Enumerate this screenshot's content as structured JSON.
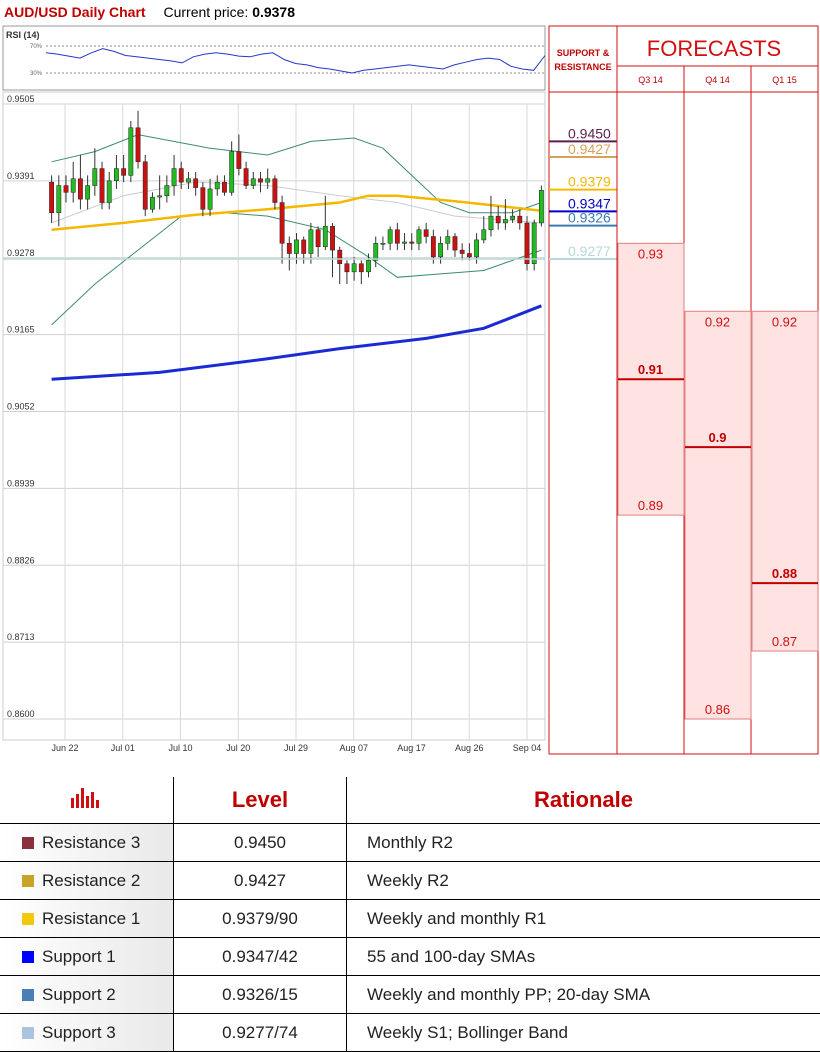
{
  "header": {
    "title": "AUD/USD Daily Chart",
    "price_label": "Current price:",
    "price_value": "0.9378"
  },
  "rsi": {
    "label": "RSI (14)",
    "upper": "70%",
    "lower": "30%",
    "values": [
      60,
      58,
      55,
      52,
      60,
      66,
      62,
      56,
      54,
      52,
      50,
      48,
      45,
      54,
      58,
      60,
      58,
      55,
      54,
      58,
      60,
      50,
      44,
      42,
      38,
      36,
      33,
      30,
      34,
      36,
      38,
      40,
      42,
      40,
      38,
      36,
      42,
      46,
      50,
      52,
      50,
      40,
      36,
      34,
      56
    ]
  },
  "chart_data": {
    "type": "candlestick",
    "title": "AUD/USD Daily Chart",
    "ylim": [
      0.86,
      0.9505
    ],
    "yticks": [
      "0.9505",
      "0.9391",
      "0.9278",
      "0.9165",
      "0.9052",
      "0.8939",
      "0.8826",
      "0.8713",
      "0.8600"
    ],
    "xticks": [
      "Jun 22",
      "Jul 01",
      "Jul 10",
      "Jul 20",
      "Jul 29",
      "Aug 07",
      "Aug 17",
      "Aug 26",
      "Sep 04"
    ],
    "candles": [
      [
        0.939,
        0.9345,
        0.94,
        0.933
      ],
      [
        0.9345,
        0.9385,
        0.94,
        0.9325
      ],
      [
        0.9385,
        0.9375,
        0.94,
        0.936
      ],
      [
        0.9375,
        0.9395,
        0.942,
        0.936
      ],
      [
        0.9395,
        0.9365,
        0.943,
        0.935
      ],
      [
        0.9365,
        0.9385,
        0.94,
        0.935
      ],
      [
        0.9385,
        0.941,
        0.944,
        0.937
      ],
      [
        0.941,
        0.936,
        0.942,
        0.935
      ],
      [
        0.936,
        0.9392,
        0.9405,
        0.935
      ],
      [
        0.9392,
        0.941,
        0.943,
        0.938
      ],
      [
        0.941,
        0.94,
        0.943,
        0.939
      ],
      [
        0.94,
        0.947,
        0.948,
        0.939
      ],
      [
        0.947,
        0.942,
        0.9495,
        0.941
      ],
      [
        0.942,
        0.935,
        0.943,
        0.934
      ],
      [
        0.935,
        0.9368,
        0.9375,
        0.9345
      ],
      [
        0.9368,
        0.937,
        0.94,
        0.935
      ],
      [
        0.937,
        0.9385,
        0.94,
        0.936
      ],
      [
        0.9385,
        0.941,
        0.943,
        0.937
      ],
      [
        0.941,
        0.939,
        0.942,
        0.938
      ],
      [
        0.939,
        0.9395,
        0.9405,
        0.938
      ],
      [
        0.9395,
        0.9382,
        0.9405,
        0.937
      ],
      [
        0.9382,
        0.935,
        0.939,
        0.934
      ],
      [
        0.935,
        0.938,
        0.9395,
        0.934
      ],
      [
        0.938,
        0.939,
        0.94,
        0.937
      ],
      [
        0.939,
        0.9375,
        0.94,
        0.937
      ],
      [
        0.9375,
        0.9435,
        0.945,
        0.937
      ],
      [
        0.9435,
        0.941,
        0.946,
        0.94
      ],
      [
        0.941,
        0.9385,
        0.942,
        0.938
      ],
      [
        0.9385,
        0.9395,
        0.9405,
        0.938
      ],
      [
        0.9395,
        0.939,
        0.9405,
        0.9375
      ],
      [
        0.939,
        0.9395,
        0.941,
        0.938
      ],
      [
        0.9395,
        0.936,
        0.94,
        0.935
      ],
      [
        0.936,
        0.93,
        0.937,
        0.927
      ],
      [
        0.93,
        0.9285,
        0.931,
        0.926
      ],
      [
        0.9285,
        0.9305,
        0.9315,
        0.927
      ],
      [
        0.9305,
        0.9285,
        0.931,
        0.927
      ],
      [
        0.9285,
        0.932,
        0.933,
        0.927
      ],
      [
        0.932,
        0.9295,
        0.9325,
        0.928
      ],
      [
        0.9295,
        0.9325,
        0.937,
        0.929
      ],
      [
        0.9325,
        0.929,
        0.933,
        0.925
      ],
      [
        0.929,
        0.927,
        0.9295,
        0.924
      ],
      [
        0.927,
        0.9258,
        0.9275,
        0.924
      ],
      [
        0.9258,
        0.927,
        0.928,
        0.9245
      ],
      [
        0.927,
        0.9258,
        0.9275,
        0.924
      ],
      [
        0.9258,
        0.9275,
        0.9285,
        0.925
      ],
      [
        0.9275,
        0.93,
        0.931,
        0.9265
      ],
      [
        0.93,
        0.93,
        0.931,
        0.929
      ],
      [
        0.93,
        0.932,
        0.9325,
        0.929
      ],
      [
        0.932,
        0.93,
        0.933,
        0.929
      ],
      [
        0.93,
        0.9302,
        0.9315,
        0.929
      ],
      [
        0.9302,
        0.93,
        0.9315,
        0.929
      ],
      [
        0.93,
        0.932,
        0.9325,
        0.929
      ],
      [
        0.932,
        0.931,
        0.933,
        0.93
      ],
      [
        0.931,
        0.928,
        0.932,
        0.927
      ],
      [
        0.928,
        0.93,
        0.931,
        0.927
      ],
      [
        0.93,
        0.931,
        0.932,
        0.929
      ],
      [
        0.931,
        0.929,
        0.9315,
        0.928
      ],
      [
        0.929,
        0.9285,
        0.93,
        0.9275
      ],
      [
        0.9285,
        0.928,
        0.93,
        0.9275
      ],
      [
        0.928,
        0.9305,
        0.9315,
        0.927
      ],
      [
        0.9305,
        0.932,
        0.934,
        0.93
      ],
      [
        0.932,
        0.934,
        0.937,
        0.931
      ],
      [
        0.934,
        0.933,
        0.9355,
        0.932
      ],
      [
        0.933,
        0.9335,
        0.9365,
        0.932
      ],
      [
        0.9335,
        0.934,
        0.935,
        0.933
      ],
      [
        0.934,
        0.933,
        0.935,
        0.932
      ],
      [
        0.933,
        0.927,
        0.934,
        0.926
      ],
      [
        0.927,
        0.933,
        0.9335,
        0.926
      ],
      [
        0.933,
        0.9378,
        0.9385,
        0.9325
      ]
    ],
    "sma_yellow": [
      [
        0,
        0.932
      ],
      [
        10,
        0.933
      ],
      [
        20,
        0.9342
      ],
      [
        30,
        0.935
      ],
      [
        40,
        0.936
      ],
      [
        44,
        0.937
      ],
      [
        48,
        0.937
      ],
      [
        56,
        0.9362
      ],
      [
        62,
        0.9355
      ],
      [
        68,
        0.9348
      ]
    ],
    "sma_blue": [
      [
        0,
        0.91
      ],
      [
        15,
        0.911
      ],
      [
        30,
        0.913
      ],
      [
        40,
        0.9145
      ],
      [
        52,
        0.916
      ],
      [
        60,
        0.9175
      ],
      [
        68,
        0.9208
      ]
    ],
    "boll_upper": [
      [
        0,
        0.942
      ],
      [
        6,
        0.9435
      ],
      [
        12,
        0.946
      ],
      [
        22,
        0.944
      ],
      [
        30,
        0.943
      ],
      [
        36,
        0.945
      ],
      [
        42,
        0.9455
      ],
      [
        46,
        0.944
      ],
      [
        50,
        0.94
      ],
      [
        54,
        0.936
      ],
      [
        58,
        0.9345
      ],
      [
        64,
        0.9345
      ],
      [
        68,
        0.936
      ]
    ],
    "boll_lower": [
      [
        0,
        0.918
      ],
      [
        6,
        0.924
      ],
      [
        12,
        0.929
      ],
      [
        18,
        0.934
      ],
      [
        24,
        0.9345
      ],
      [
        30,
        0.934
      ],
      [
        38,
        0.932
      ],
      [
        44,
        0.928
      ],
      [
        48,
        0.925
      ],
      [
        54,
        0.9255
      ],
      [
        60,
        0.926
      ],
      [
        64,
        0.9275
      ],
      [
        68,
        0.929
      ]
    ],
    "boll_mid": [
      [
        0,
        0.933
      ],
      [
        10,
        0.937
      ],
      [
        20,
        0.939
      ],
      [
        30,
        0.9385
      ],
      [
        40,
        0.937
      ],
      [
        48,
        0.936
      ],
      [
        56,
        0.934
      ],
      [
        62,
        0.9335
      ],
      [
        68,
        0.933
      ]
    ],
    "levels": [
      {
        "label": "0.9450",
        "value": 0.945,
        "color": "#5b1f4d"
      },
      {
        "label": "0.9427",
        "value": 0.9427,
        "color": "#d6a25a"
      },
      {
        "label": "0.9379",
        "value": 0.9379,
        "color": "#f5b800"
      },
      {
        "label": "0.9347",
        "value": 0.9347,
        "color": "#0000c8"
      },
      {
        "label": "0.9326",
        "value": 0.9326,
        "color": "#3a7ab5"
      },
      {
        "label": "0.9277",
        "value": 0.9277,
        "color": "#b8d8d8"
      }
    ]
  },
  "sr_header": {
    "line1": "SUPPORT &",
    "line2": "RESISTANCE"
  },
  "forecasts": {
    "title": "FORECASTS",
    "columns": [
      {
        "label": "Q3 14",
        "high": 0.93,
        "median": 0.91,
        "low": 0.89,
        "high_label": "0.93",
        "median_label": "0.91",
        "low_label": "0.89"
      },
      {
        "label": "Q4 14",
        "high": 0.92,
        "median": 0.9,
        "low": 0.86,
        "high_label": "0.92",
        "median_label": "0.9",
        "low_label": "0.86"
      },
      {
        "label": "Q1 15",
        "high": 0.92,
        "median": 0.88,
        "low": 0.87,
        "high_label": "0.92",
        "median_label": "0.88",
        "low_label": "0.87"
      }
    ]
  },
  "table": {
    "headers": [
      "Level",
      "Rationale"
    ],
    "header_icon": "bar-chart-icon",
    "rows": [
      {
        "name": "Resistance 3",
        "level": "0.9450",
        "rationale": "Monthly R2",
        "color": "#8b2f3c"
      },
      {
        "name": "Resistance 2",
        "level": "0.9427",
        "rationale": "Weekly R2",
        "color": "#c9a227"
      },
      {
        "name": "Resistance 1",
        "level": "0.9379/90",
        "rationale": "Weekly and monthly R1",
        "color": "#f2c80f"
      },
      {
        "name": "Support 1",
        "level": "0.9347/42",
        "rationale": "55 and 100-day SMAs",
        "color": "#0000ff"
      },
      {
        "name": "Support 2",
        "level": "0.9326/15",
        "rationale": "Weekly and monthly PP; 20-day SMA",
        "color": "#4a7fb5"
      },
      {
        "name": "Support 3",
        "level": "0.9277/74",
        "rationale": "Weekly S1; Bollinger Band",
        "color": "#aac4e0"
      }
    ]
  }
}
